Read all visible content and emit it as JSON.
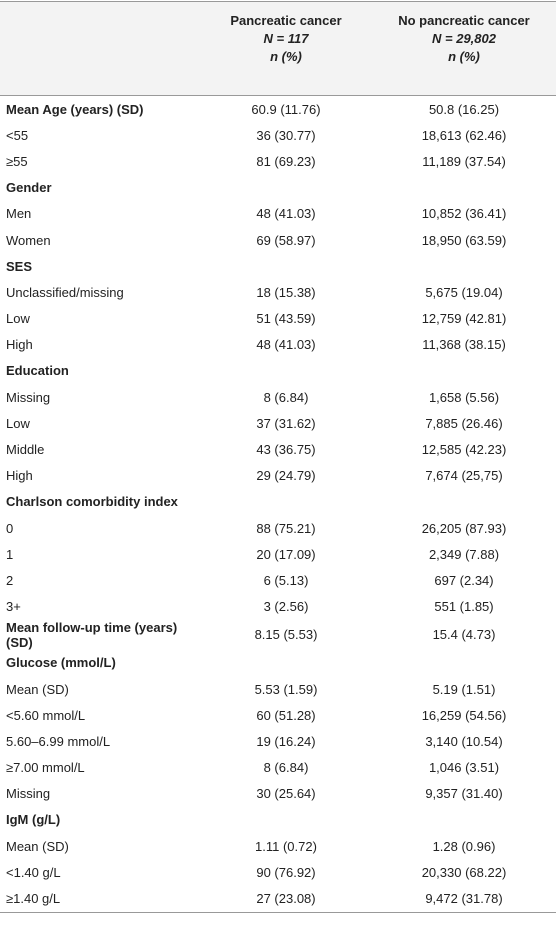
{
  "table": {
    "columns": [
      {
        "name": "Pancreatic cancer",
        "n": "N = 117",
        "unit": "n (%)"
      },
      {
        "name": "No pancreatic cancer",
        "n": "N = 29,802",
        "unit": "n (%)"
      }
    ],
    "rows": [
      {
        "label": "Mean Age (years) (SD)",
        "bold": true,
        "values": [
          "60.9 (11.76)",
          "50.8 (16.25)"
        ]
      },
      {
        "label": "<55",
        "values": [
          "36 (30.77)",
          "18,613 (62.46)"
        ]
      },
      {
        "label": "≥55",
        "values": [
          "81 (69.23)",
          "11,189 (37.54)"
        ]
      },
      {
        "label": "Gender",
        "bold": true
      },
      {
        "label": "Men",
        "values": [
          "48 (41.03)",
          "10,852 (36.41)"
        ]
      },
      {
        "label": "Women",
        "values": [
          "69 (58.97)",
          "18,950 (63.59)"
        ]
      },
      {
        "label": "SES",
        "bold": true
      },
      {
        "label": "Unclassified/missing",
        "values": [
          "18 (15.38)",
          "5,675 (19.04)"
        ]
      },
      {
        "label": "Low",
        "values": [
          "51 (43.59)",
          "12,759 (42.81)"
        ]
      },
      {
        "label": "High",
        "values": [
          "48 (41.03)",
          "11,368 (38.15)"
        ]
      },
      {
        "label": "Education",
        "bold": true
      },
      {
        "label": "Missing",
        "values": [
          "8 (6.84)",
          "1,658 (5.56)"
        ]
      },
      {
        "label": "Low",
        "values": [
          "37 (31.62)",
          "7,885 (26.46)"
        ]
      },
      {
        "label": "Middle",
        "values": [
          "43 (36.75)",
          "12,585 (42.23)"
        ]
      },
      {
        "label": "High",
        "values": [
          "29 (24.79)",
          "7,674 (25,75)"
        ]
      },
      {
        "label": "Charlson comorbidity index",
        "bold": true
      },
      {
        "label": "0",
        "values": [
          "88 (75.21)",
          "26,205 (87.93)"
        ]
      },
      {
        "label": "1",
        "values": [
          "20 (17.09)",
          "2,349 (7.88)"
        ]
      },
      {
        "label": "2",
        "values": [
          "6 (5.13)",
          "697 (2.34)"
        ]
      },
      {
        "label": "3+",
        "values": [
          "3 (2.56)",
          "551 (1.85)"
        ]
      },
      {
        "label": "Mean follow-up time (years) (SD)",
        "bold": true,
        "values": [
          "8.15 (5.53)",
          "15.4 (4.73)"
        ]
      },
      {
        "label": "Glucose (mmol/L)",
        "bold": true
      },
      {
        "label": "Mean (SD)",
        "values": [
          "5.53 (1.59)",
          "5.19 (1.51)"
        ]
      },
      {
        "label": "<5.60 mmol/L",
        "values": [
          "60 (51.28)",
          "16,259 (54.56)"
        ]
      },
      {
        "label": "5.60–6.99 mmol/L",
        "values": [
          "19 (16.24)",
          "3,140 (10.54)"
        ]
      },
      {
        "label": "≥7.00 mmol/L",
        "values": [
          "8 (6.84)",
          "1,046 (3.51)"
        ]
      },
      {
        "label": "Missing",
        "values": [
          "30 (25.64)",
          "9,357 (31.40)"
        ]
      },
      {
        "label": "IgM (g/L)",
        "bold": true
      },
      {
        "label": "Mean (SD)",
        "values": [
          "1.11 (0.72)",
          "1.28 (0.96)"
        ]
      },
      {
        "label": "<1.40 g/L",
        "values": [
          "90 (76.92)",
          "20,330 (68.22)"
        ]
      },
      {
        "label": "≥1.40 g/L",
        "values": [
          "27 (23.08)",
          "9,472 (31.78)"
        ]
      }
    ]
  }
}
